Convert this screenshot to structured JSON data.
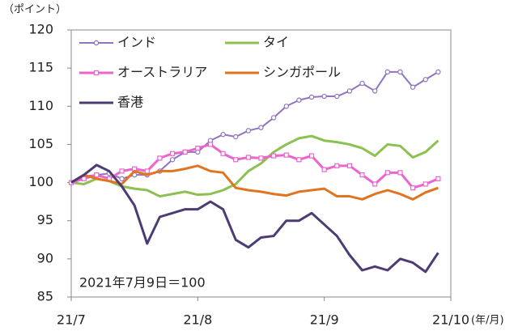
{
  "chart_data": {
    "type": "line",
    "y_unit_label": "（ポイント）",
    "x_unit_label": "(年/月)",
    "annotation": "2021年7月9日＝100",
    "x": [
      0,
      2,
      4,
      6,
      8,
      10,
      12,
      14,
      16,
      18,
      20,
      22,
      24,
      26,
      28,
      30,
      32,
      34,
      36,
      38,
      40,
      42,
      44,
      46,
      48,
      50,
      52,
      54,
      56,
      58
    ],
    "xlim": [
      0,
      60
    ],
    "xticks": [
      {
        "value": 0,
        "label": "21/7"
      },
      {
        "value": 20,
        "label": "21/8"
      },
      {
        "value": 40,
        "label": "21/9"
      },
      {
        "value": 60,
        "label": "21/10"
      }
    ],
    "ylim": [
      85,
      120
    ],
    "yticks": [
      85,
      90,
      95,
      100,
      105,
      110,
      115,
      120
    ],
    "grid": false,
    "legend": "top-left",
    "series": [
      {
        "name": "インド",
        "color": "#8f74c0",
        "marker": "circle",
        "values": [
          100,
          100.8,
          101,
          101.2,
          100.5,
          101,
          101,
          101.5,
          103,
          104,
          104,
          105.5,
          106.3,
          106,
          106.8,
          107.2,
          108.5,
          110,
          110.8,
          111.2,
          111.3,
          111.3,
          112,
          113,
          112,
          114.5,
          114.5,
          112.5,
          113.5,
          114.5
        ]
      },
      {
        "name": "タイ",
        "color": "#8cc152",
        "marker": "none",
        "values": [
          100,
          99.8,
          100.5,
          100.2,
          99.5,
          99.2,
          99,
          98.2,
          98.5,
          98.8,
          98.4,
          98.5,
          99,
          99.8,
          101.5,
          102.5,
          104,
          105,
          105.8,
          106.1,
          105.5,
          105.3,
          105,
          104.5,
          103.5,
          105,
          104.8,
          103.3,
          104,
          105.5
        ]
      },
      {
        "name": "オーストラリア",
        "color": "#ec64cd",
        "marker": "square",
        "values": [
          100,
          100.5,
          101,
          100.5,
          101.5,
          101.8,
          101.5,
          103.2,
          103.8,
          104,
          104.5,
          105,
          103.8,
          103,
          103.3,
          103.2,
          103.5,
          103.6,
          103,
          103.5,
          101.7,
          102.2,
          102.2,
          101,
          99.8,
          101.3,
          101.3,
          99.3,
          99.8,
          100.5
        ]
      },
      {
        "name": "シンガポール",
        "color": "#e0741f",
        "marker": "none",
        "values": [
          100,
          101,
          100.5,
          100.2,
          99.8,
          101.5,
          101,
          101.5,
          101.5,
          101.8,
          102.2,
          101.5,
          101.3,
          99.3,
          99,
          98.8,
          98.5,
          98.3,
          98.8,
          99,
          99.2,
          98.2,
          98.2,
          97.8,
          98.5,
          99,
          98.5,
          97.8,
          98.7,
          99.3
        ]
      },
      {
        "name": "香港",
        "color": "#4d3c73",
        "marker": "none",
        "values": [
          100,
          101,
          102.3,
          101.5,
          99.5,
          97,
          92,
          95.5,
          96,
          96.5,
          96.5,
          97.5,
          96.5,
          92.5,
          91.5,
          92.8,
          93,
          95,
          95,
          96,
          94.5,
          93,
          90.5,
          88.5,
          89,
          88.5,
          90,
          89.5,
          88.3,
          90.8
        ]
      }
    ]
  }
}
